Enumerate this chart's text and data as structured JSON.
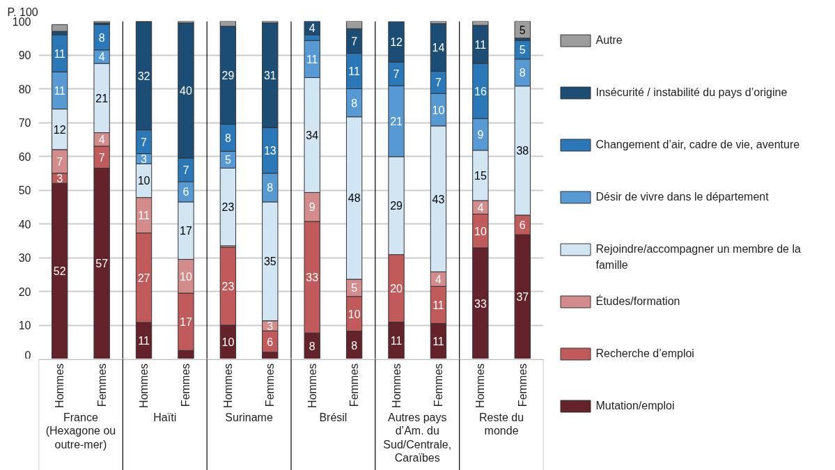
{
  "chart_data": {
    "type": "bar",
    "stacked": true,
    "ylabel": "P. 100",
    "categories": [
      "Hommes",
      "Femmes",
      "Hommes",
      "Femmes",
      "Hommes",
      "Femmes",
      "Hommes",
      "Femmes",
      "Hommes",
      "Femmes",
      "Hommes",
      "Femmes"
    ],
    "annotations": [
      "France (Hexagone ou outre-mer)",
      "Haïti",
      "Suriname",
      "Brésil",
      "Autres pays d’Am. du Sud/Centrale, Caraïbes",
      "Reste du monde"
    ],
    "ylim": [
      0,
      100
    ],
    "yticks": [
      0,
      10,
      20,
      30,
      40,
      50,
      60,
      70,
      80,
      90,
      100
    ],
    "grid": "y",
    "legend": "right",
    "series": [
      {
        "name": "Mutation/emploi",
        "color": "#64232a",
        "values": [
          52,
          56.5,
          10.8,
          2.5,
          10,
          2,
          7.7,
          8.2,
          10.9,
          10.5,
          32.9,
          36.8
        ],
        "value_labels": [
          "52",
          "57",
          "11",
          null,
          "10",
          null,
          "8",
          "8",
          "11",
          "11",
          "33",
          "37"
        ]
      },
      {
        "name": "Recherche d’emploi",
        "color": "#c15b5b",
        "values": [
          3,
          6.5,
          26.5,
          17,
          23,
          6.3,
          33,
          10.3,
          20,
          11,
          10,
          5.8
        ],
        "value_labels": [
          "3",
          "7",
          "27",
          "17",
          "23",
          "6",
          "33",
          "10",
          "20",
          "11",
          "10",
          "6"
        ]
      },
      {
        "name": "Études/formation",
        "color": "#d48b8b",
        "values": [
          7,
          4,
          10.5,
          10,
          0.5,
          3,
          8.6,
          5.1,
          null,
          4.3,
          4,
          null
        ],
        "value_labels": [
          "7",
          "4",
          "11",
          "10",
          null,
          "3",
          "9",
          "5",
          null,
          "4",
          "4",
          null
        ]
      },
      {
        "name": "Rejoindre/accompagner un membre de la famille",
        "color": "#d2e5f3",
        "values": [
          12,
          20.5,
          10,
          17,
          23,
          35.2,
          34,
          48.1,
          29,
          43.2,
          14.9,
          38.2
        ],
        "value_labels": [
          "12",
          "21",
          "10",
          "17",
          "23",
          "35",
          "34",
          "48",
          "29",
          "43",
          "15",
          "38"
        ]
      },
      {
        "name": "Désir de vivre dans le département",
        "color": "#5699d3",
        "values": [
          11,
          4,
          3,
          6,
          5,
          8.5,
          11,
          8.3,
          21,
          9.6,
          9.4,
          8
        ],
        "value_labels": [
          "11",
          "4",
          "3",
          "6",
          "5",
          "8",
          "11",
          "8",
          "21",
          "10",
          "9",
          "8"
        ]
      },
      {
        "name": "Changement d’air, cadre de vie, aventure",
        "color": "#2a78b8",
        "values": [
          11,
          7.5,
          7,
          7,
          8,
          13.5,
          1.7,
          10.5,
          7,
          6.6,
          16.3,
          5.5
        ],
        "value_labels": [
          "11",
          "8",
          "7",
          "7",
          "8",
          "13",
          null,
          "11",
          "7",
          "7",
          "16",
          "5"
        ]
      },
      {
        "name": "Insécurité / instabilité du pays d’origine",
        "color": "#1c4e75",
        "values": [
          1,
          0.5,
          32,
          40,
          29,
          31,
          4,
          7.3,
          12,
          14.1,
          11.3,
          0.7
        ],
        "value_labels": [
          null,
          null,
          "32",
          "40",
          "29",
          "31",
          "4",
          "7",
          "12",
          "14",
          "11",
          null
        ]
      },
      {
        "name": "Autre",
        "color": "#9d9d9d",
        "values": [
          2,
          0.5,
          0.2,
          0.5,
          1.5,
          0.5,
          null,
          2.2,
          null,
          0.7,
          1.2,
          5
        ],
        "value_labels": [
          null,
          null,
          null,
          null,
          null,
          null,
          null,
          null,
          null,
          null,
          null,
          "5"
        ]
      }
    ]
  }
}
